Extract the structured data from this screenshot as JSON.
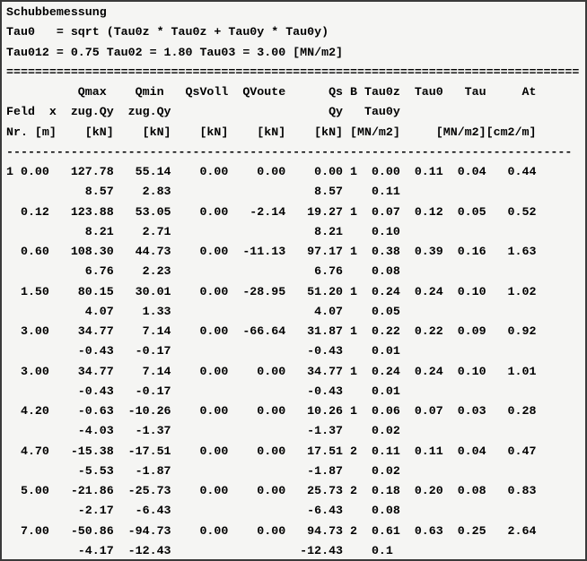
{
  "window": {
    "background_color": "#f5f5f3",
    "border_color": "#3a3a3a"
  },
  "report": {
    "title": "Schubbemessung",
    "formula_tau0": "Tau0   = sqrt (Tau0z * Tau0z + Tau0y * Tau0y)",
    "formula_limits": "Tau012 = 0.75 Tau02 = 1.80 Tau03 = 3.00 [MN/m2]",
    "table": {
      "header_rows": [
        [
          "",
          "",
          "Qmax",
          "Qmin",
          "QsVoll",
          "QVoute",
          "Qs",
          "B",
          "Tau0z",
          "Tau0",
          "Tau",
          "At"
        ],
        [
          "Feld",
          "x",
          "zug.Qy",
          "zug.Qy",
          "",
          "",
          "Qy",
          "",
          "Tau0y",
          "",
          "",
          ""
        ],
        [
          "Nr.",
          "[m]",
          "[kN]",
          "[kN]",
          "[kN]",
          "[kN]",
          "[kN]",
          "",
          "[MN/m2]",
          "[MN/m2]",
          "[MN/m2]",
          "[cm2/m]"
        ]
      ],
      "rows": [
        {
          "feld": "1",
          "x": "0.00",
          "qmax": "127.78",
          "qmin": "55.14",
          "qsvoll": "0.00",
          "qvoute": "0.00",
          "qs": "0.00",
          "b": "1",
          "tau0z": "0.00",
          "tau0": "0.11",
          "tau": "0.04",
          "at": "0.44",
          "sub": {
            "qy_under_qmax": "8.57",
            "qy_under_qmin": "2.83",
            "qy": "8.57",
            "tau0y": "0.11"
          }
        },
        {
          "feld": "",
          "x": "0.12",
          "qmax": "123.88",
          "qmin": "53.05",
          "qsvoll": "0.00",
          "qvoute": "-2.14",
          "qs": "19.27",
          "b": "1",
          "tau0z": "0.07",
          "tau0": "0.12",
          "tau": "0.05",
          "at": "0.52",
          "sub": {
            "qy_under_qmax": "8.21",
            "qy_under_qmin": "2.71",
            "qy": "8.21",
            "tau0y": "0.10"
          }
        },
        {
          "feld": "",
          "x": "0.60",
          "qmax": "108.30",
          "qmin": "44.73",
          "qsvoll": "0.00",
          "qvoute": "-11.13",
          "qs": "97.17",
          "b": "1",
          "tau0z": "0.38",
          "tau0": "0.39",
          "tau": "0.16",
          "at": "1.63",
          "sub": {
            "qy_under_qmax": "6.76",
            "qy_under_qmin": "2.23",
            "qy": "6.76",
            "tau0y": "0.08"
          }
        },
        {
          "feld": "",
          "x": "1.50",
          "qmax": "80.15",
          "qmin": "30.01",
          "qsvoll": "0.00",
          "qvoute": "-28.95",
          "qs": "51.20",
          "b": "1",
          "tau0z": "0.24",
          "tau0": "0.24",
          "tau": "0.10",
          "at": "1.02",
          "sub": {
            "qy_under_qmax": "4.07",
            "qy_under_qmin": "1.33",
            "qy": "4.07",
            "tau0y": "0.05"
          }
        },
        {
          "feld": "",
          "x": "3.00",
          "qmax": "34.77",
          "qmin": "7.14",
          "qsvoll": "0.00",
          "qvoute": "-66.64",
          "qs": "31.87",
          "b": "1",
          "tau0z": "0.22",
          "tau0": "0.22",
          "tau": "0.09",
          "at": "0.92",
          "sub": {
            "qy_under_qmax": "-0.43",
            "qy_under_qmin": "-0.17",
            "qy": "-0.43",
            "tau0y": "0.01"
          }
        },
        {
          "feld": "",
          "x": "3.00",
          "qmax": "34.77",
          "qmin": "7.14",
          "qsvoll": "0.00",
          "qvoute": "0.00",
          "qs": "34.77",
          "b": "1",
          "tau0z": "0.24",
          "tau0": "0.24",
          "tau": "0.10",
          "at": "1.01",
          "sub": {
            "qy_under_qmax": "-0.43",
            "qy_under_qmin": "-0.17",
            "qy": "-0.43",
            "tau0y": "0.01"
          }
        },
        {
          "feld": "",
          "x": "4.20",
          "qmax": "-0.63",
          "qmin": "-10.26",
          "qsvoll": "0.00",
          "qvoute": "0.00",
          "qs": "10.26",
          "b": "1",
          "tau0z": "0.06",
          "tau0": "0.07",
          "tau": "0.03",
          "at": "0.28",
          "sub": {
            "qy_under_qmax": "-4.03",
            "qy_under_qmin": "-1.37",
            "qy": "-1.37",
            "tau0y": "0.02"
          }
        },
        {
          "feld": "",
          "x": "4.70",
          "qmax": "-15.38",
          "qmin": "-17.51",
          "qsvoll": "0.00",
          "qvoute": "0.00",
          "qs": "17.51",
          "b": "2",
          "tau0z": "0.11",
          "tau0": "0.11",
          "tau": "0.04",
          "at": "0.47",
          "sub": {
            "qy_under_qmax": "-5.53",
            "qy_under_qmin": "-1.87",
            "qy": "-1.87",
            "tau0y": "0.02"
          }
        },
        {
          "feld": "",
          "x": "5.00",
          "qmax": "-21.86",
          "qmin": "-25.73",
          "qsvoll": "0.00",
          "qvoute": "0.00",
          "qs": "25.73",
          "b": "2",
          "tau0z": "0.18",
          "tau0": "0.20",
          "tau": "0.08",
          "at": "0.83",
          "sub": {
            "qy_under_qmax": "-2.17",
            "qy_under_qmin": "-6.43",
            "qy": "-6.43",
            "tau0y": "0.08"
          }
        },
        {
          "feld": "",
          "x": "7.00",
          "qmax": "-50.86",
          "qmin": "-94.73",
          "qsvoll": "0.00",
          "qvoute": "0.00",
          "qs": "94.73",
          "b": "2",
          "tau0z": "0.61",
          "tau0": "0.63",
          "tau": "0.25",
          "at": "2.64",
          "sub": {
            "qy_under_qmax": "-4.17",
            "qy_under_qmin": "-12.43",
            "qy": "-12.43",
            "tau0y": "0.1"
          }
        }
      ]
    },
    "lines": [
      "Schubbemessung",
      "Tau0   = sqrt (Tau0z * Tau0z + Tau0y * Tau0y)",
      "Tau012 = 0.75 Tau02 = 1.80 Tau03 = 3.00 [MN/m2]",
      "================================================================================",
      "          Qmax    Qmin   QsVoll  QVoute      Qs B Tau0z  Tau0   Tau     At",
      "Feld  x  zug.Qy  zug.Qy                      Qy   Tau0y",
      "Nr. [m]    [kN]    [kN]    [kN]    [kN]    [kN] [MN/m2]     [MN/m2][cm2/m]",
      "-------------------------------------------------------------------------------",
      "1 0.00   127.78   55.14    0.00    0.00    0.00 1  0.00  0.11  0.04   0.44",
      "           8.57    2.83                    8.57    0.11",
      "  0.12   123.88   53.05    0.00   -2.14   19.27 1  0.07  0.12  0.05   0.52",
      "           8.21    2.71                    8.21    0.10",
      "  0.60   108.30   44.73    0.00  -11.13   97.17 1  0.38  0.39  0.16   1.63",
      "           6.76    2.23                    6.76    0.08",
      "  1.50    80.15   30.01    0.00  -28.95   51.20 1  0.24  0.24  0.10   1.02",
      "           4.07    1.33                    4.07    0.05",
      "  3.00    34.77    7.14    0.00  -66.64   31.87 1  0.22  0.22  0.09   0.92",
      "          -0.43   -0.17                   -0.43    0.01",
      "  3.00    34.77    7.14    0.00    0.00   34.77 1  0.24  0.24  0.10   1.01",
      "          -0.43   -0.17                   -0.43    0.01",
      "  4.20    -0.63  -10.26    0.00    0.00   10.26 1  0.06  0.07  0.03   0.28",
      "          -4.03   -1.37                   -1.37    0.02",
      "  4.70   -15.38  -17.51    0.00    0.00   17.51 2  0.11  0.11  0.04   0.47",
      "          -5.53   -1.87                   -1.87    0.02",
      "  5.00   -21.86  -25.73    0.00    0.00   25.73 2  0.18  0.20  0.08   0.83",
      "          -2.17   -6.43                   -6.43    0.08",
      "  7.00   -50.86  -94.73    0.00    0.00   94.73 2  0.61  0.63  0.25   2.64",
      "          -4.17  -12.43                  -12.43    0.1"
    ]
  }
}
